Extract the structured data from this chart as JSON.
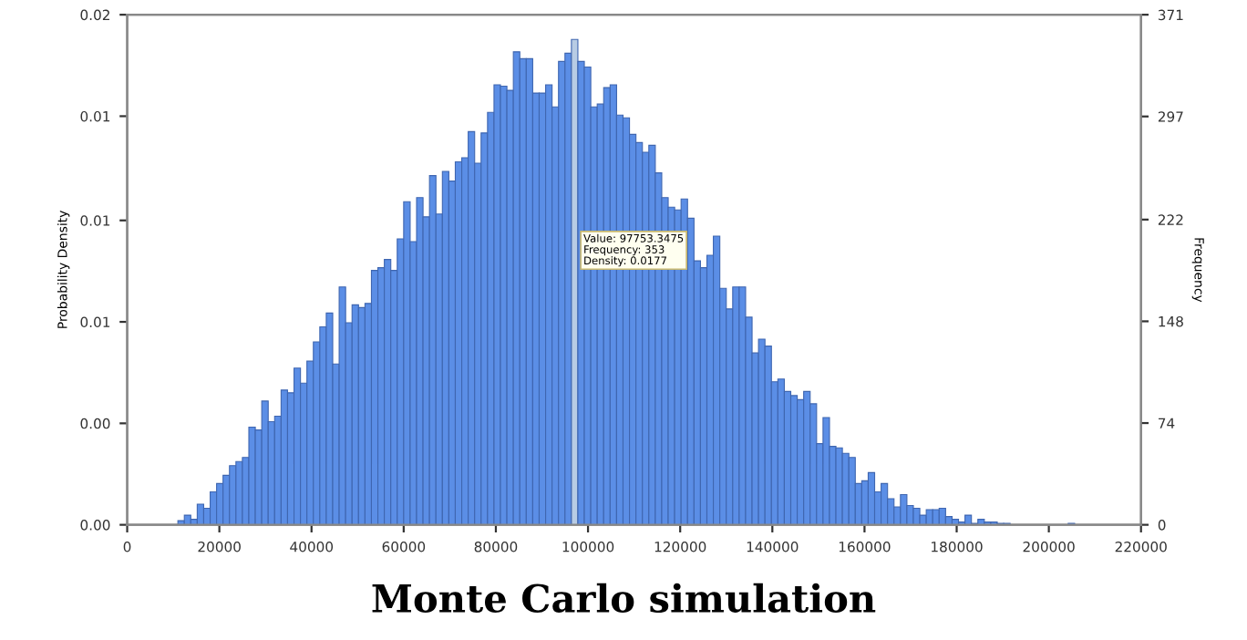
{
  "chart_data": {
    "type": "histogram",
    "title": "Monte Carlo simulation",
    "ylabel": "Probability Density",
    "y2label": "Frequency",
    "xlim": [
      0,
      220000
    ],
    "xticks": [
      0,
      20000,
      40000,
      60000,
      80000,
      100000,
      120000,
      140000,
      160000,
      180000,
      200000,
      220000
    ],
    "ylim": [
      0,
      0.0186
    ],
    "yticks": [
      {
        "value": 0,
        "label": "0.00"
      },
      {
        "value": 0.0037,
        "label": "0.00"
      },
      {
        "value": 0.0074,
        "label": "0.01"
      },
      {
        "value": 0.0111,
        "label": "0.01"
      },
      {
        "value": 0.0149,
        "label": "0.01"
      },
      {
        "value": 0.0186,
        "label": "0.02"
      }
    ],
    "y2lim": [
      0,
      371
    ],
    "y2ticks": [
      0,
      74,
      148,
      222,
      297,
      371
    ],
    "bins": [
      11000,
      12400,
      13800,
      15200,
      16600,
      18000,
      19400,
      20800,
      22200,
      23600,
      25000,
      26400,
      27800,
      29200,
      30600,
      32000,
      33400,
      34800,
      36200,
      37600,
      39000,
      40400,
      41800,
      43200,
      44600,
      46000,
      47400,
      48800,
      50200,
      51600,
      53000,
      54400,
      55800,
      57200,
      58600,
      60000,
      61400,
      62800,
      64200,
      65600,
      67000,
      68400,
      69800,
      71200,
      72600,
      74000,
      75400,
      76800,
      78200,
      79600,
      81000,
      82400,
      83800,
      85200,
      86600,
      88000,
      89400,
      90800,
      92200,
      93600,
      95000,
      96400,
      97800,
      99200,
      100600,
      102000,
      103400,
      104800,
      106200,
      107600,
      109000,
      110400,
      111800,
      113200,
      114600,
      116000,
      117400,
      118800,
      120200,
      121600,
      123000,
      124400,
      125800,
      127200,
      128600,
      130000,
      131400,
      132800,
      134200,
      135600,
      137000,
      138400,
      139800,
      141200,
      142600,
      144000,
      145400,
      146800,
      148200,
      149600,
      151000,
      152400,
      153800,
      155200,
      156600,
      158000,
      159400,
      160800,
      162200,
      163600,
      165000,
      166400,
      167800,
      169200,
      170600,
      172000,
      173400,
      174800,
      176200,
      177600,
      179000,
      180400,
      181800,
      183200,
      184600,
      186000,
      187400,
      188800,
      190200,
      191600,
      193000,
      194400,
      195800,
      197200,
      198600,
      200000,
      201400,
      202800,
      204200,
      205600
    ],
    "series": [
      {
        "axis": "y2",
        "values": [
          3,
          7,
          4,
          15,
          12,
          24,
          30,
          36,
          43,
          46,
          49,
          71,
          69,
          90,
          75,
          79,
          98,
          96,
          114,
          103,
          119,
          133,
          144,
          154,
          117,
          173,
          147,
          160,
          158,
          161,
          185,
          187,
          193,
          185,
          208,
          235,
          206,
          238,
          224,
          254,
          226,
          257,
          250,
          264,
          267,
          286,
          263,
          285,
          300,
          320,
          319,
          316,
          344,
          339,
          339,
          314,
          314,
          320,
          304,
          337,
          343,
          353,
          337,
          333,
          304,
          306,
          318,
          320,
          298,
          296,
          284,
          278,
          271,
          276,
          256,
          238,
          231,
          229,
          237,
          223,
          192,
          187,
          196,
          210,
          172,
          157,
          173,
          173,
          151,
          125,
          135,
          130,
          104,
          106,
          97,
          94,
          91,
          97,
          88,
          59,
          78,
          57,
          56,
          52,
          49,
          30,
          32,
          38,
          24,
          30,
          19,
          13,
          22,
          14,
          12,
          7,
          11,
          11,
          12,
          6,
          4,
          2,
          7,
          1,
          4,
          2,
          2,
          1,
          1,
          0,
          0,
          0,
          0,
          0,
          0,
          0,
          0,
          0,
          1
        ],
        "colors": [
          "#5b8ee6",
          "#5b8ee6",
          "#5b8ee6",
          "#5b8ee6",
          "#5b8ee6",
          "#5b8ee6",
          "#5b8ee6",
          "#5b8ee6",
          "#5b8ee6",
          "#5b8ee6",
          "#5b8ee6",
          "#5b8ee6",
          "#5b8ee6",
          "#5b8ee6",
          "#5b8ee6",
          "#5b8ee6",
          "#5b8ee6",
          "#5b8ee6",
          "#5b8ee6",
          "#5b8ee6",
          "#5b8ee6",
          "#5b8ee6",
          "#5b8ee6",
          "#5b8ee6",
          "#5b8ee6",
          "#5b8ee6",
          "#5b8ee6",
          "#5b8ee6",
          "#5b8ee6",
          "#5b8ee6",
          "#5b8ee6",
          "#5b8ee6",
          "#5b8ee6",
          "#5b8ee6",
          "#5b8ee6",
          "#5b8ee6",
          "#5b8ee6",
          "#5b8ee6",
          "#5b8ee6",
          "#5b8ee6",
          "#5b8ee6",
          "#5b8ee6",
          "#5b8ee6",
          "#5b8ee6",
          "#5b8ee6",
          "#5b8ee6",
          "#5b8ee6",
          "#5b8ee6",
          "#5b8ee6",
          "#5b8ee6",
          "#5b8ee6",
          "#5b8ee6",
          "#5b8ee6",
          "#5b8ee6",
          "#5b8ee6",
          "#5b8ee6",
          "#5b8ee6",
          "#5b8ee6",
          "#5b8ee6",
          "#5b8ee6",
          "#5b8ee6",
          "#b8cce4",
          "#5b8ee6",
          "#5b8ee6",
          "#5b8ee6",
          "#5b8ee6",
          "#5b8ee6",
          "#5b8ee6",
          "#5b8ee6",
          "#5b8ee6",
          "#5b8ee6",
          "#5b8ee6",
          "#5b8ee6",
          "#5b8ee6",
          "#5b8ee6",
          "#5b8ee6",
          "#5b8ee6",
          "#5b8ee6",
          "#5b8ee6",
          "#5b8ee6",
          "#5b8ee6",
          "#5b8ee6",
          "#5b8ee6",
          "#5b8ee6",
          "#5b8ee6",
          "#5b8ee6",
          "#5b8ee6",
          "#5b8ee6",
          "#5b8ee6",
          "#5b8ee6",
          "#5b8ee6",
          "#5b8ee6",
          "#5b8ee6",
          "#5b8ee6",
          "#5b8ee6",
          "#5b8ee6",
          "#5b8ee6",
          "#5b8ee6",
          "#5b8ee6",
          "#5b8ee6",
          "#5b8ee6",
          "#5b8ee6",
          "#5b8ee6",
          "#5b8ee6",
          "#5b8ee6",
          "#5b8ee6",
          "#5b8ee6",
          "#5b8ee6",
          "#5b8ee6",
          "#5b8ee6",
          "#5b8ee6",
          "#5b8ee6",
          "#5b8ee6",
          "#5b8ee6",
          "#5b8ee6",
          "#5b8ee6",
          "#5b8ee6",
          "#5b8ee6",
          "#5b8ee6",
          "#5b8ee6",
          "#5b8ee6",
          "#5b8ee6",
          "#5b8ee6",
          "#5b8ee6",
          "#5b8ee6",
          "#5b8ee6",
          "#5b8ee6",
          "#5b8ee6",
          "#5b8ee6",
          "#5b8ee6",
          "#5b8ee6",
          "#5b8ee6",
          "#5b8ee6",
          "#5b8ee6",
          "#5b8ee6",
          "#5b8ee6",
          "#5b8ee6",
          "#5b8ee6",
          "#5b8ee6"
        ]
      }
    ],
    "annotations": [
      "Value: 97753.3475\nFrequency: 353\nDensity: 0.0177"
    ]
  }
}
